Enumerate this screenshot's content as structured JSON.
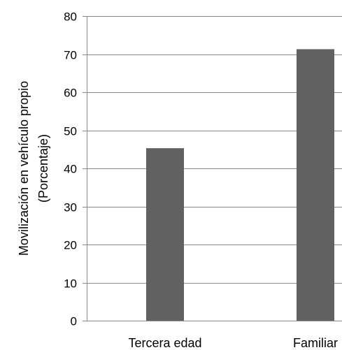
{
  "chart_data": {
    "type": "bar",
    "categories": [
      "Tercera edad",
      "Familiar"
    ],
    "values": [
      45.3,
      71.3
    ],
    "ylabel_line1": "Movilización en vehículo propio",
    "ylabel_line2": "(Porcentaje)",
    "ylim": [
      0,
      80
    ],
    "yticks": [
      "0",
      "10",
      "20",
      "30",
      "40",
      "50",
      "60",
      "70",
      "80"
    ],
    "grid": true,
    "bar_color": "#616161",
    "grid_color": "#8a8a8a"
  }
}
